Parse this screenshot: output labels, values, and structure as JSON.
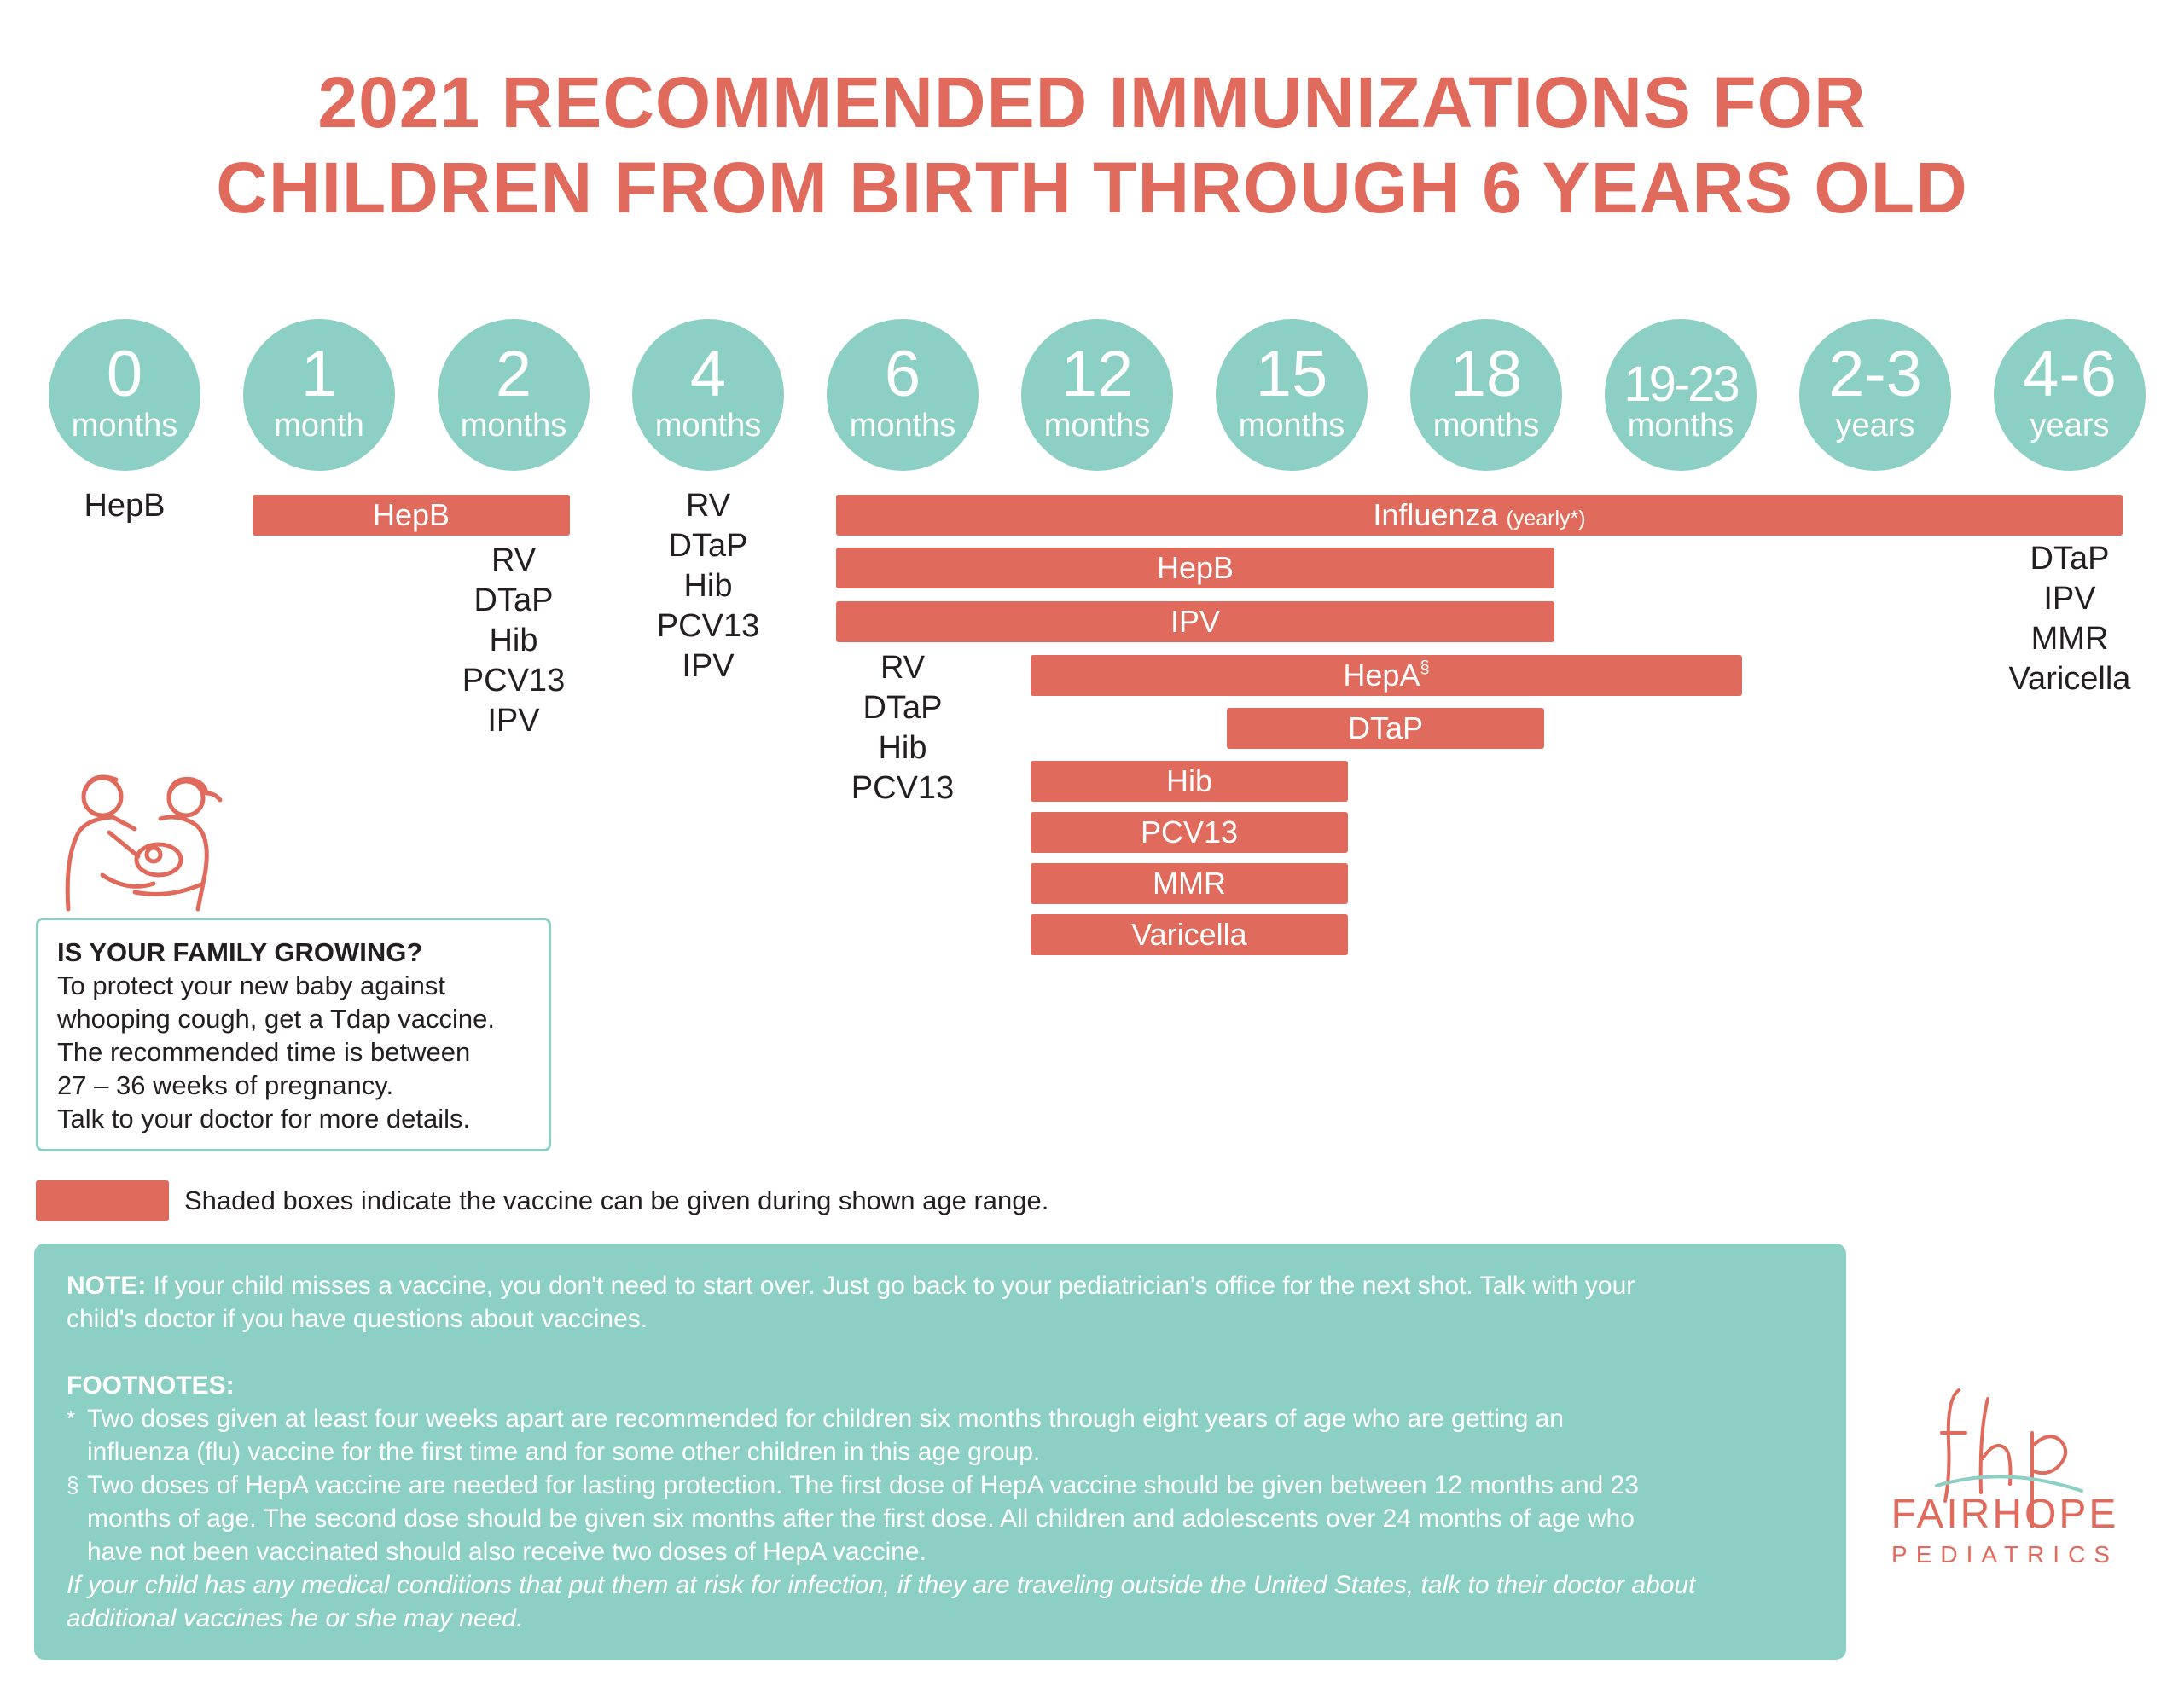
{
  "title": {
    "line1": "2021 RECOMMENDED IMMUNIZATIONS FOR",
    "line2": "CHILDREN FROM BIRTH THROUGH 6 YEARS OLD"
  },
  "ages": [
    {
      "value": "0",
      "unit": "months"
    },
    {
      "value": "1",
      "unit": "month"
    },
    {
      "value": "2",
      "unit": "months"
    },
    {
      "value": "4",
      "unit": "months"
    },
    {
      "value": "6",
      "unit": "months"
    },
    {
      "value": "12",
      "unit": "months"
    },
    {
      "value": "15",
      "unit": "months"
    },
    {
      "value": "18",
      "unit": "months"
    },
    {
      "value": "19-23",
      "unit": "months"
    },
    {
      "value": "2-3",
      "unit": "years"
    },
    {
      "value": "4-6",
      "unit": "years"
    }
  ],
  "single_doses": {
    "age_0": [
      "HepB"
    ],
    "age_2": [
      "RV",
      "DTaP",
      "Hib",
      "PCV13",
      "IPV"
    ],
    "age_4": [
      "RV",
      "DTaP",
      "Hib",
      "PCV13",
      "IPV"
    ],
    "age_6": [
      "RV",
      "DTaP",
      "Hib",
      "PCV13"
    ],
    "age_4_6y": [
      "DTaP",
      "IPV",
      "MMR",
      "Varicella"
    ]
  },
  "bars": [
    {
      "label": "HepB",
      "suffix": "",
      "mark": ""
    },
    {
      "label": "Influenza",
      "suffix": "(yearly*)",
      "mark": ""
    },
    {
      "label": "HepB",
      "suffix": "",
      "mark": ""
    },
    {
      "label": "IPV",
      "suffix": "",
      "mark": ""
    },
    {
      "label": "HepA",
      "suffix": "",
      "mark": "§"
    },
    {
      "label": "DTaP",
      "suffix": "",
      "mark": ""
    },
    {
      "label": "Hib",
      "suffix": "",
      "mark": ""
    },
    {
      "label": "PCV13",
      "suffix": "",
      "mark": ""
    },
    {
      "label": "MMR",
      "suffix": "",
      "mark": ""
    },
    {
      "label": "Varicella",
      "suffix": "",
      "mark": ""
    }
  ],
  "family_box": {
    "heading": "IS YOUR FAMILY GROWING?",
    "lines": [
      "To protect your new baby against",
      "whooping cough, get a Tdap vaccine.",
      "The recommended time is between",
      "27 – 36 weeks of pregnancy.",
      "Talk to your doctor for more details."
    ]
  },
  "legend": {
    "text": "Shaded boxes indicate the vaccine can be given during shown age range."
  },
  "note": {
    "label": "NOTE:",
    "line1": " If your child misses a vaccine, you don't need to start over. Just go back to your pediatrician’s office for the next shot. Talk with your",
    "line2": "child's doctor if you have questions about vaccines.",
    "footnotes_heading": "FOOTNOTES:",
    "fn1_mark": "*",
    "fn1_line1": "Two doses given at least four weeks apart are recommended for children six months through eight years of age who are getting an",
    "fn1_line2": "influenza (flu) vaccine for the first time and for some other children in this age group.",
    "fn2_mark": "§",
    "fn2_line1": "Two doses of HepA vaccine are needed for lasting protection. The first dose of HepA vaccine should be given between 12 months and 23",
    "fn2_line2": "months of age. The second dose should be given six months after the first dose. All children and adolescents over 24 months of age who",
    "fn2_line3": "have not been vaccinated should also receive two doses of HepA vaccine.",
    "italic_line1": "If your child has any medical conditions that put them at risk for infection, if they are traveling outside the United States, talk to their doctor about",
    "italic_line2": "additional vaccines he or she may need."
  },
  "logo": {
    "monogram": "fhp",
    "name": "FAIRHOPE",
    "sub": "PEDIATRICS"
  },
  "colors": {
    "coral": "#e06a5b",
    "teal": "#8ccfc4",
    "text": "#231f20"
  }
}
